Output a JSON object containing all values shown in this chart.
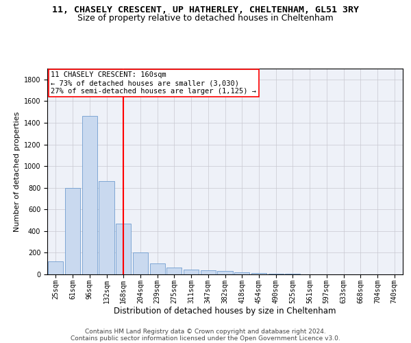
{
  "title_line1": "11, CHASELY CRESCENT, UP HATHERLEY, CHELTENHAM, GL51 3RY",
  "title_line2": "Size of property relative to detached houses in Cheltenham",
  "xlabel": "Distribution of detached houses by size in Cheltenham",
  "ylabel": "Number of detached properties",
  "categories": [
    "25sqm",
    "61sqm",
    "96sqm",
    "132sqm",
    "168sqm",
    "204sqm",
    "239sqm",
    "275sqm",
    "311sqm",
    "347sqm",
    "382sqm",
    "418sqm",
    "454sqm",
    "490sqm",
    "525sqm",
    "561sqm",
    "597sqm",
    "633sqm",
    "668sqm",
    "704sqm",
    "740sqm"
  ],
  "values": [
    120,
    800,
    1460,
    860,
    470,
    200,
    100,
    65,
    45,
    35,
    30,
    20,
    15,
    8,
    5,
    3,
    2,
    2,
    1,
    1,
    0
  ],
  "bar_color": "#c9d9ef",
  "bar_edge_color": "#5b8fc9",
  "vline_x_index": 4,
  "vline_color": "red",
  "annotation_line1": "11 CHASELY CRESCENT: 160sqm",
  "annotation_line2": "← 73% of detached houses are smaller (3,030)",
  "annotation_line3": "27% of semi-detached houses are larger (1,125) →",
  "ylim": [
    0,
    1900
  ],
  "yticks": [
    0,
    200,
    400,
    600,
    800,
    1000,
    1200,
    1400,
    1600,
    1800
  ],
  "grid_color": "#c8c8d0",
  "bg_color": "#eef1f8",
  "footer_line1": "Contains HM Land Registry data © Crown copyright and database right 2024.",
  "footer_line2": "Contains public sector information licensed under the Open Government Licence v3.0.",
  "title_fontsize": 9.5,
  "subtitle_fontsize": 9,
  "xlabel_fontsize": 8.5,
  "ylabel_fontsize": 8,
  "tick_fontsize": 7,
  "annotation_fontsize": 7.5,
  "footer_fontsize": 6.5
}
